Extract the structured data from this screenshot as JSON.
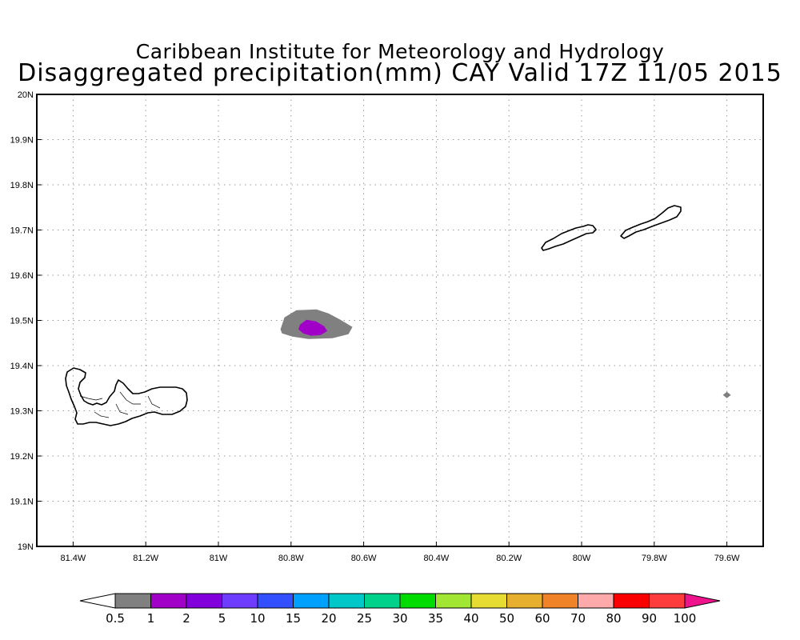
{
  "title": {
    "line1": "Caribbean Institute for Meteorology and Hydrology",
    "line2": "Disaggregated precipitation(mm) CAY Valid 17Z 11/05 2015"
  },
  "map": {
    "lon_range": [
      -81.5,
      -79.5
    ],
    "lat_range": [
      19.0,
      20.0
    ],
    "grid": "dotted",
    "x_tick_labels": [
      {
        "lon": -81.4,
        "label": "81.4W"
      },
      {
        "lon": -81.2,
        "label": "81.2W"
      },
      {
        "lon": -81.0,
        "label": "81W"
      },
      {
        "lon": -80.8,
        "label": "80.8W"
      },
      {
        "lon": -80.6,
        "label": "80.6W"
      },
      {
        "lon": -80.4,
        "label": "80.4W"
      },
      {
        "lon": -80.2,
        "label": "80.2W"
      },
      {
        "lon": -80.0,
        "label": "80W"
      },
      {
        "lon": -79.8,
        "label": "79.8W"
      },
      {
        "lon": -79.6,
        "label": "79.6W"
      }
    ],
    "y_tick_labels": [
      {
        "lat": 19.0,
        "label": "19N"
      },
      {
        "lat": 19.1,
        "label": "19.1N"
      },
      {
        "lat": 19.2,
        "label": "19.2N"
      },
      {
        "lat": 19.3,
        "label": "19.3N"
      },
      {
        "lat": 19.4,
        "label": "19.4N"
      },
      {
        "lat": 19.5,
        "label": "19.5N"
      },
      {
        "lat": 19.6,
        "label": "19.6N"
      },
      {
        "lat": 19.7,
        "label": "19.7N"
      },
      {
        "lat": 19.8,
        "label": "19.8N"
      },
      {
        "lat": 19.9,
        "label": "19.9N"
      },
      {
        "lat": 20.0,
        "label": "20N"
      }
    ],
    "precip_areas": [
      {
        "lon": -80.73,
        "lat": 19.48,
        "level": "0.5-1",
        "color": "#808080"
      },
      {
        "lon": -80.74,
        "lat": 19.48,
        "level": "1-2",
        "color": "#a000c8"
      },
      {
        "lon": -79.6,
        "lat": 19.335,
        "level": "0.5-1",
        "color": "#808080"
      }
    ]
  },
  "colorbar": {
    "labels": [
      "0.5",
      "1",
      "2",
      "5",
      "10",
      "15",
      "20",
      "25",
      "30",
      "35",
      "40",
      "50",
      "60",
      "70",
      "80",
      "90",
      "100"
    ],
    "colors": [
      "#808080",
      "#a000c8",
      "#8200dc",
      "#6e3cff",
      "#3250ff",
      "#00a0ff",
      "#00c8c8",
      "#00d28c",
      "#00dc00",
      "#a0e632",
      "#e6dc32",
      "#e6af2d",
      "#f08228",
      "#ffaaaa",
      "#fa0000",
      "#ff3c3c"
    ],
    "under_color": "#ffffff",
    "over_color": "#f0148c"
  }
}
